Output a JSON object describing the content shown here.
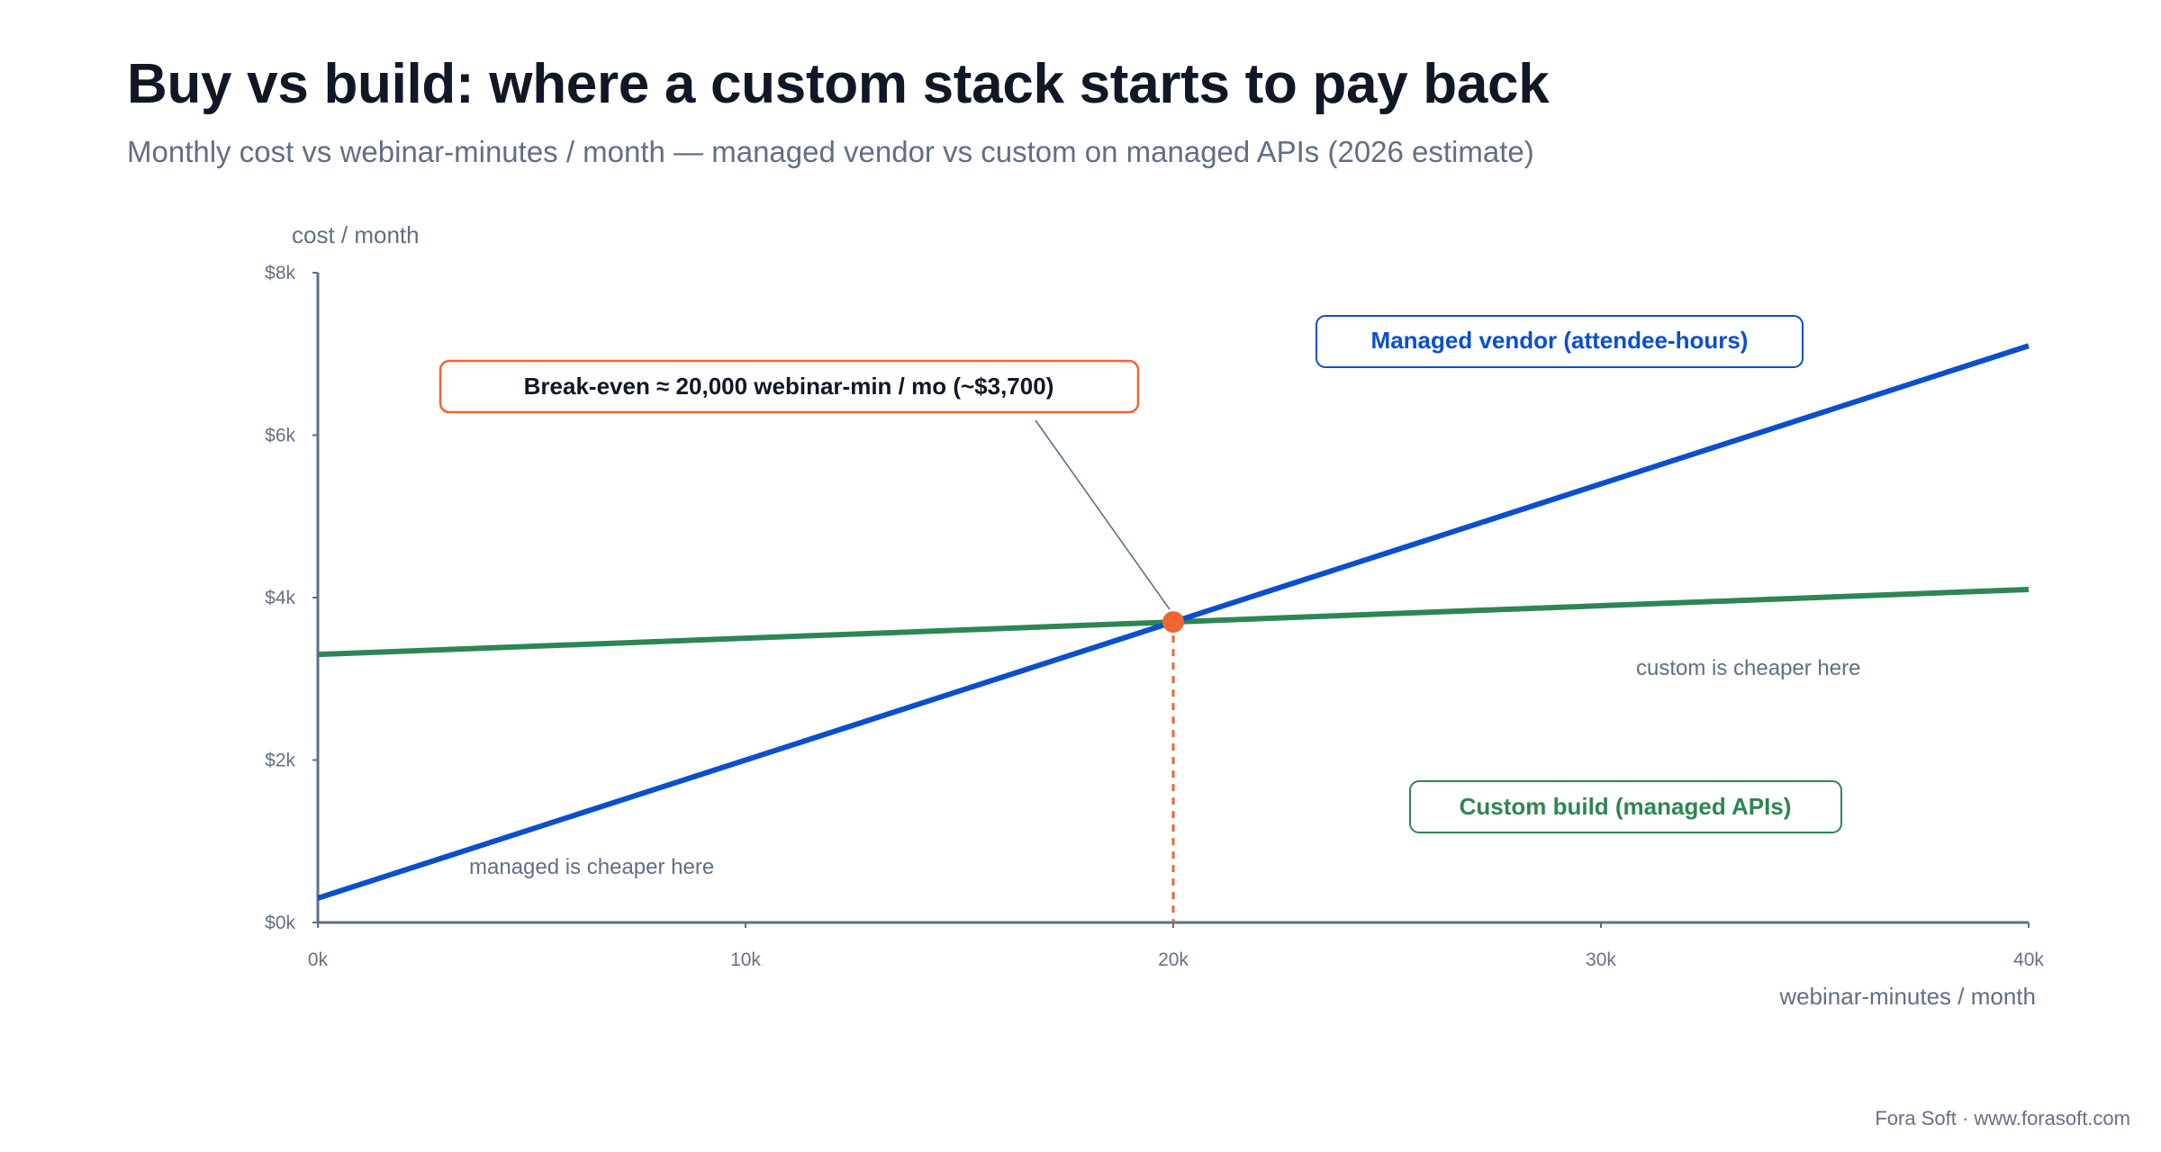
{
  "title": "Buy vs build: where a custom stack starts to pay back",
  "subtitle": "Monthly cost vs webinar-minutes / month — managed vendor vs custom on managed APIs (2026 estimate)",
  "footer": "Fora Soft · www.forasoft.com",
  "chart_data": {
    "type": "line",
    "xlabel": "webinar-minutes / month",
    "ylabel": "cost / month",
    "xlim": [
      0,
      40000
    ],
    "ylim": [
      0,
      8000
    ],
    "x_ticks": [
      0,
      10000,
      20000,
      30000,
      40000
    ],
    "x_tick_labels": [
      "0k",
      "10k",
      "20k",
      "30k",
      "40k"
    ],
    "y_ticks": [
      0,
      2000,
      4000,
      6000,
      8000
    ],
    "y_tick_labels": [
      "$0k",
      "$2k",
      "$4k",
      "$6k",
      "$8k"
    ],
    "grid": false,
    "series": [
      {
        "name": "Managed vendor (attendee-hours)",
        "color": "#0b4fcc",
        "points": [
          [
            0,
            300
          ],
          [
            40000,
            7100
          ]
        ]
      },
      {
        "name": "Custom build (managed APIs)",
        "color": "#2d8653",
        "points": [
          [
            0,
            3300
          ],
          [
            40000,
            4100
          ]
        ]
      }
    ],
    "break_even": {
      "x": 20000,
      "y": 3700,
      "label": "Break-even ≈ 20,000 webinar-min / mo (~$3,700)",
      "color": "#f26430"
    },
    "region_labels": {
      "managed_cheaper": "managed is cheaper here",
      "custom_cheaper": "custom is cheaper here"
    },
    "colors": {
      "axis": "#5f6f86",
      "text": "#101828",
      "muted": "#5f6f86"
    }
  }
}
